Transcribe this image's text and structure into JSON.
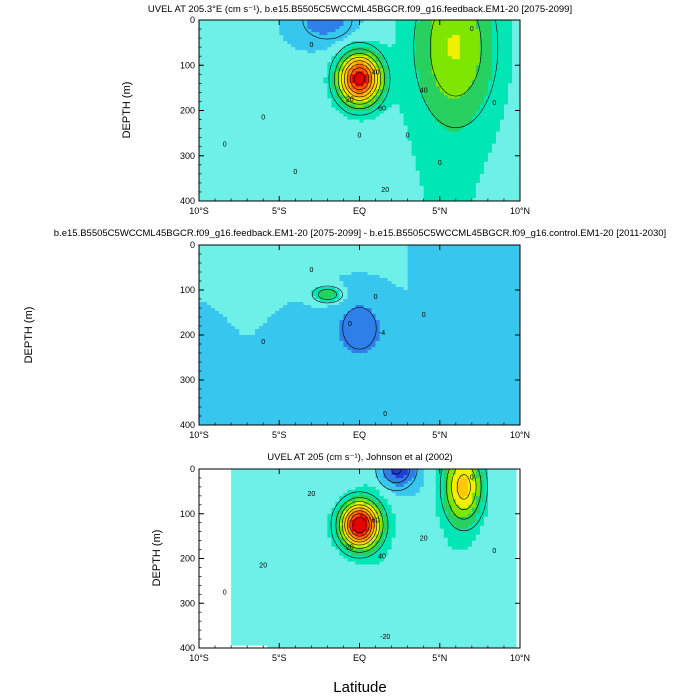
{
  "figure": {
    "xlabel": "Latitude",
    "colors": {
      "levels": [
        -30,
        -20,
        -10,
        0,
        10,
        20,
        30,
        40,
        50,
        60,
        70,
        80
      ],
      "fills": [
        "#1f3cd6",
        "#2f7fe8",
        "#36c6ee",
        "#6cf0e8",
        "#00e6b4",
        "#28d060",
        "#7ee600",
        "#f0f000",
        "#ffc800",
        "#ff9400",
        "#ff5a00",
        "#e60000"
      ],
      "contour_line": "#000000"
    }
  },
  "chart_data": [
    {
      "type": "heatmap",
      "title": "UVEL AT 205.3°E (cm s⁻¹), b.e15.B5505C5WCCML45BGCR.f09_g16.feedback.EM1-20 [2075-2099]",
      "ylabel": "DEPTH (m)",
      "xlim": [
        -10,
        10
      ],
      "ylim": [
        0,
        400
      ],
      "xticks": [
        "10°S",
        "5°S",
        "EQ",
        "5°N",
        "10°N"
      ],
      "yticks": [
        "0",
        "100",
        "200",
        "300",
        "400"
      ],
      "contour_labels": [
        "0",
        "20",
        "40",
        "60",
        "0",
        "20",
        "40",
        "0",
        "0",
        "0",
        "0",
        "0",
        "0",
        "0"
      ],
      "features": [
        {
          "kind": "core",
          "lat": 0.0,
          "depth": 130,
          "value": 85,
          "width_deg": 1.3,
          "depth_scale": 55
        },
        {
          "kind": "core",
          "lat": -2.0,
          "depth": 0,
          "value": -18,
          "width_deg": 2.0,
          "depth_scale": 55
        },
        {
          "kind": "core",
          "lat": 6.0,
          "depth": 60,
          "value": 30,
          "width_deg": 2.5,
          "depth_scale": 170
        }
      ]
    },
    {
      "type": "heatmap",
      "title": "b.e15.B5505C5WCCML45BGCR.f09_g16.feedback.EM1-20 [2075-2099] - b.e15.B5505C5WCCML45BGCR.f09_g16.control.EM1-20 [2011-2030]",
      "ylabel": "DEPTH (m)",
      "xlim": [
        -10,
        10
      ],
      "ylim": [
        0,
        400
      ],
      "xticks": [
        "10°S",
        "5°S",
        "EQ",
        "5°N",
        "10°N"
      ],
      "yticks": [
        "0",
        "100",
        "200",
        "300",
        "400"
      ],
      "contour_labels": [
        "0",
        "0",
        "0",
        "-4",
        "0",
        "0",
        "0"
      ],
      "features": [
        {
          "kind": "core",
          "lat": 0.0,
          "depth": 185,
          "value": -14,
          "width_deg": 1.8,
          "depth_scale": 80
        },
        {
          "kind": "core",
          "lat": -2.0,
          "depth": 110,
          "value": 30,
          "width_deg": 0.9,
          "depth_scale": 18
        },
        {
          "kind": "core",
          "lat": 4.5,
          "depth": 320,
          "value": -4,
          "width_deg": 1.2,
          "depth_scale": 60
        }
      ]
    },
    {
      "type": "heatmap",
      "title": "UVEL AT 205 (cm s⁻¹), Johnson et al (2002)",
      "ylabel": "DEPTH (m)",
      "xlabel": "Latitude",
      "xlim": [
        -10,
        10
      ],
      "ylim": [
        0,
        400
      ],
      "xticks": [
        "10°S",
        "5°S",
        "EQ",
        "5°N",
        "10°N"
      ],
      "yticks": [
        "0",
        "100",
        "200",
        "300",
        "400"
      ],
      "contour_labels": [
        "20",
        "20",
        "60",
        "40",
        "20",
        "-20",
        "20",
        "0",
        "0",
        "0"
      ],
      "data_extent": {
        "lat_min": -8.0,
        "lat_max": 9.8
      },
      "features": [
        {
          "kind": "core",
          "lat": 0.0,
          "depth": 125,
          "value": 90,
          "width_deg": 1.2,
          "depth_scale": 50
        },
        {
          "kind": "core",
          "lat": 2.3,
          "depth": 0,
          "value": -32,
          "width_deg": 1.2,
          "depth_scale": 45
        },
        {
          "kind": "core",
          "lat": 6.5,
          "depth": 40,
          "value": 45,
          "width_deg": 1.2,
          "depth_scale": 80
        }
      ]
    }
  ]
}
